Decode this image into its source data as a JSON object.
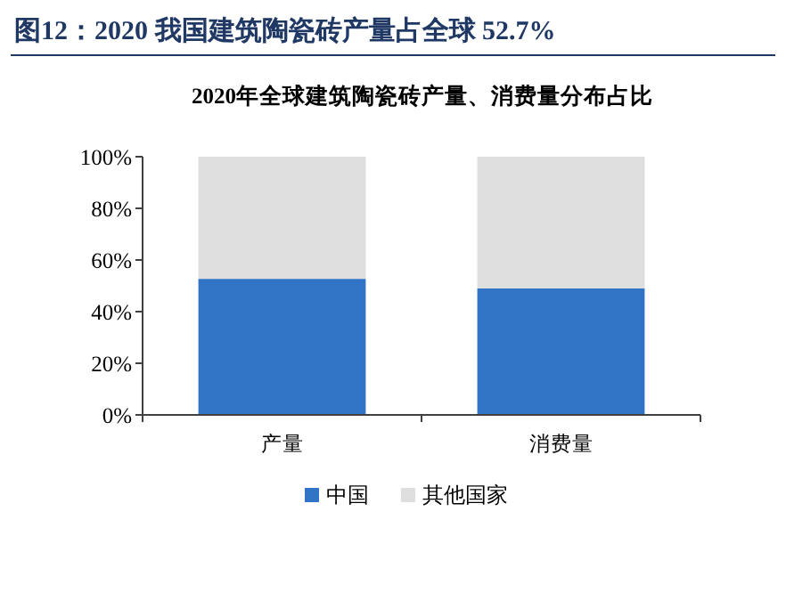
{
  "chart_data": {
    "type": "bar",
    "title": "图12：2020 我国建筑陶瓷砖产量占全球 52.7%",
    "subtitle": "2020年全球建筑陶瓷砖产量、消费量分布占比",
    "categories": [
      "产量",
      "消费量"
    ],
    "series": [
      {
        "name": "中国",
        "color": "#3174c6",
        "values": [
          52.7,
          49.0
        ]
      },
      {
        "name": "其他国家",
        "color": "#dedede",
        "values": [
          47.3,
          51.0
        ]
      }
    ],
    "stacked": true,
    "ylim": [
      0,
      100
    ],
    "yticks": [
      {
        "value": 0,
        "label": "0%"
      },
      {
        "value": 20,
        "label": "20%"
      },
      {
        "value": 40,
        "label": "40%"
      },
      {
        "value": 60,
        "label": "60%"
      },
      {
        "value": 80,
        "label": "80%"
      },
      {
        "value": 100,
        "label": "100%"
      }
    ],
    "legend": "bottom"
  }
}
